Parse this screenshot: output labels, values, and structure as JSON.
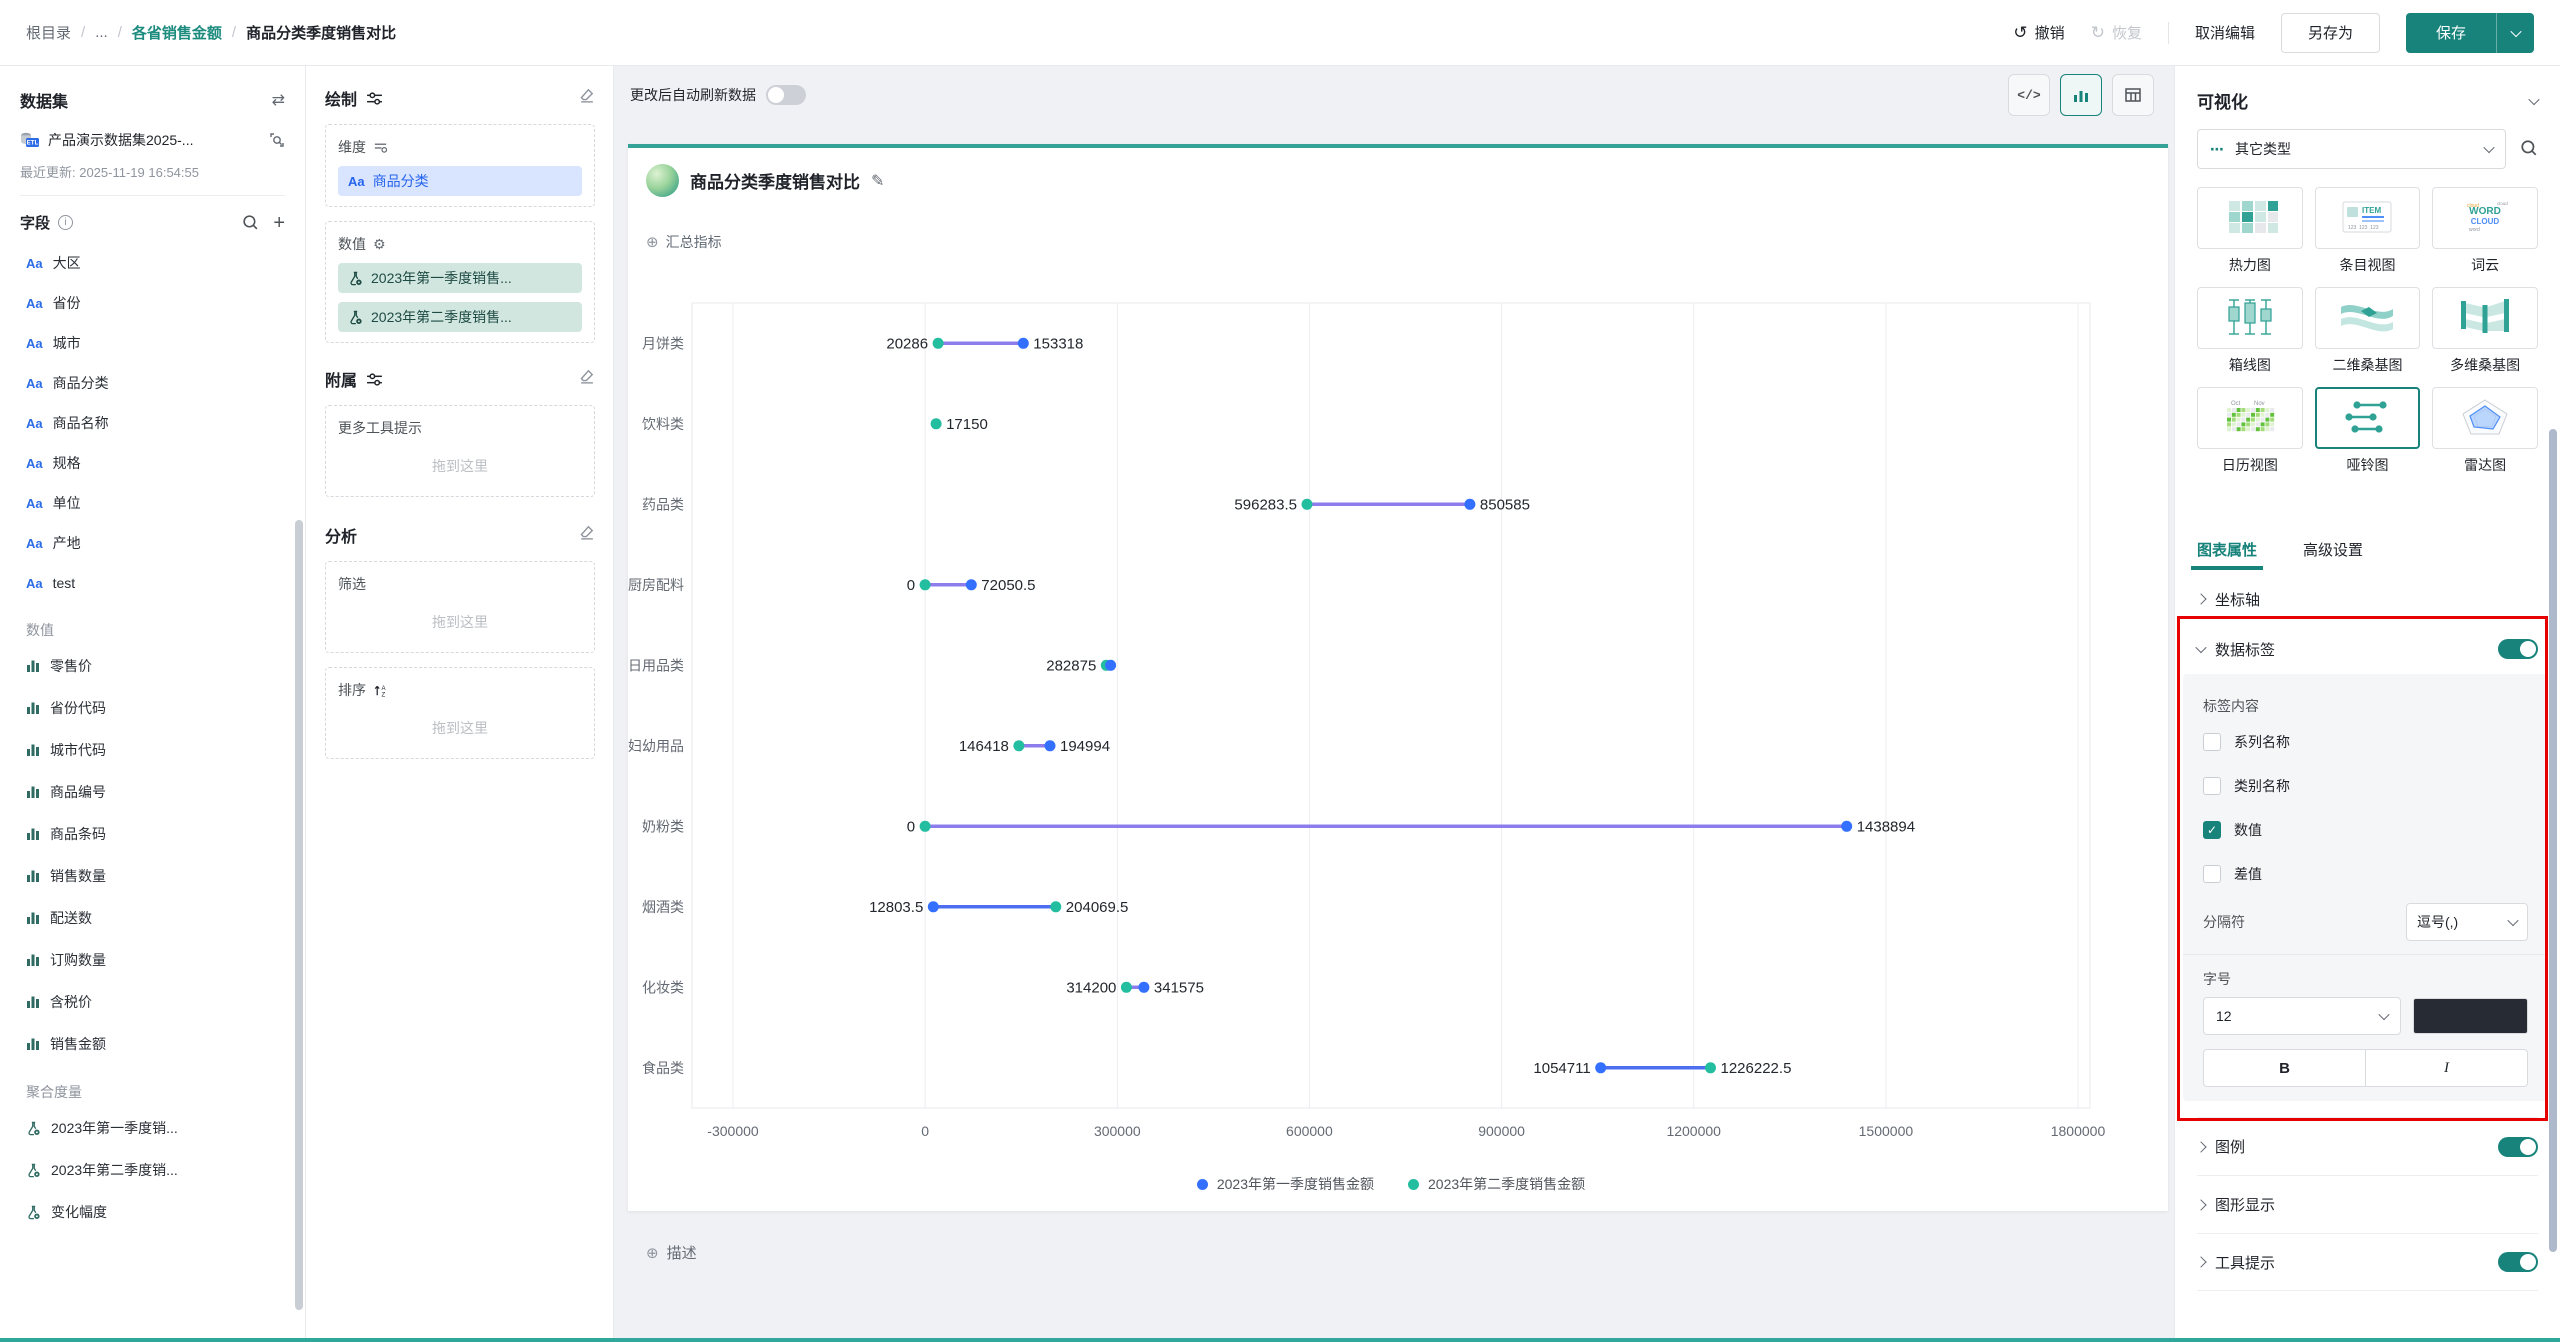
{
  "topbar": {
    "breadcrumb": [
      "根目录",
      "...",
      "各省销售金额",
      "商品分类季度销售对比"
    ],
    "undo": "撤销",
    "redo": "恢复",
    "cancel_edit": "取消编辑",
    "save_as": "另存为",
    "save": "保存"
  },
  "dataset_panel": {
    "title": "数据集",
    "name": "产品演示数据集2025-...",
    "updated": "最近更新: 2025-11-19 16:54:55",
    "fields_title": "字段",
    "groups": [
      {
        "label": "",
        "type": "text",
        "items": [
          "大区",
          "省份",
          "城市",
          "商品分类",
          "商品名称",
          "规格",
          "单位",
          "产地",
          "test"
        ]
      },
      {
        "label": "数值",
        "type": "measure",
        "items": [
          "零售价",
          "省份代码",
          "城市代码",
          "商品编号",
          "商品条码",
          "销售数量",
          "配送数",
          "订购数量",
          "含税价",
          "销售金额"
        ]
      },
      {
        "label": "聚合度量",
        "type": "calc",
        "items": [
          "2023年第一季度销...",
          "2023年第二季度销...",
          "变化幅度"
        ]
      }
    ]
  },
  "draw_panel": {
    "title": "绘制",
    "dimension_label": "维度",
    "dimension_pills": [
      {
        "icon": "aa",
        "label": "商品分类"
      }
    ],
    "measure_label": "数值",
    "measure_pills": [
      {
        "icon": "flask",
        "label": "2023年第一季度销售..."
      },
      {
        "icon": "flask",
        "label": "2023年第二季度销售..."
      }
    ],
    "attach_title": "附属",
    "attach_box": {
      "label": "更多工具提示",
      "hint": "拖到这里"
    },
    "analysis_title": "分析",
    "filter_box": {
      "label": "筛选",
      "hint": "拖到这里"
    },
    "sort_box": {
      "label": "排序",
      "hint": "拖到这里"
    }
  },
  "canvas": {
    "auto_refresh_label": "更改后自动刷新数据",
    "auto_refresh_on": false,
    "active_view": "chart",
    "summary_label": "汇总指标",
    "description_label": "描述"
  },
  "chart_data": {
    "type": "dumbbell",
    "title": "商品分类季度销售对比",
    "categories": [
      "月饼类",
      "饮料类",
      "药品类",
      "厨房配料",
      "日用品类",
      "妇幼用品",
      "奶粉类",
      "烟酒类",
      "化妆类",
      "食品类"
    ],
    "series": [
      {
        "name": "2023年第一季度销售金额",
        "color": "#3370FF"
      },
      {
        "name": "2023年第二季度销售金额",
        "color": "#23BEA0"
      }
    ],
    "rows": [
      {
        "category": "月饼类",
        "q1": 153318,
        "q2": 20286,
        "labels": [
          "20286",
          "153318"
        ],
        "line": "purple"
      },
      {
        "category": "饮料类",
        "q1": null,
        "q2": 17150,
        "labels": [
          "17150"
        ],
        "line": null
      },
      {
        "category": "药品类",
        "q1": 850585,
        "q2": 596283.5,
        "labels": [
          "596283.5",
          "850585"
        ],
        "line": "purple"
      },
      {
        "category": "厨房配料",
        "q1": 72050.5,
        "q2": 0,
        "labels": [
          "0",
          "72050.5"
        ],
        "line": "purple"
      },
      {
        "category": "日用品类",
        "q1": 289600,
        "q2": 282875,
        "labels": [
          "282875"
        ],
        "line": "purple"
      },
      {
        "category": "妇幼用品",
        "q1": 194994,
        "q2": 146418,
        "labels": [
          "146418",
          "194994"
        ],
        "line": "purple"
      },
      {
        "category": "奶粉类",
        "q1": 1438894,
        "q2": 0,
        "labels": [
          "0",
          "1438894"
        ],
        "line": "purple"
      },
      {
        "category": "烟酒类",
        "q1": 12803.5,
        "q2": 204069.5,
        "labels": [
          "12803.5",
          "204069.5"
        ],
        "line": "blue"
      },
      {
        "category": "化妆类",
        "q1": 341575,
        "q2": 314200,
        "labels": [
          "314200",
          "341575"
        ],
        "line": "purple"
      },
      {
        "category": "食品类",
        "q1": 1054711,
        "q2": 1226222.5,
        "labels": [
          "1054711",
          "1226222.5"
        ],
        "line": "blue"
      }
    ],
    "x_ticks": [
      -300000,
      0,
      300000,
      600000,
      900000,
      1200000,
      1500000,
      1800000
    ],
    "x_range": [
      -300000,
      1800000
    ],
    "grid": true,
    "legend_position": "bottom",
    "label_font_size": "12"
  },
  "viz_panel": {
    "title": "可视化",
    "type_select_value": "其它类型",
    "chart_types": [
      {
        "label": "热力图",
        "icon": "heatmap",
        "selected": false
      },
      {
        "label": "条目视图",
        "icon": "itemview",
        "selected": false
      },
      {
        "label": "词云",
        "icon": "wordcloud",
        "selected": false
      },
      {
        "label": "箱线图",
        "icon": "boxplot",
        "selected": false
      },
      {
        "label": "二维桑基图",
        "icon": "sankey2",
        "selected": false
      },
      {
        "label": "多维桑基图",
        "icon": "sankeyn",
        "selected": false
      },
      {
        "label": "日历视图",
        "icon": "calendar",
        "selected": false
      },
      {
        "label": "哑铃图",
        "icon": "dumbbell",
        "selected": true
      },
      {
        "label": "雷达图",
        "icon": "radar",
        "selected": false
      }
    ],
    "tabs": [
      {
        "label": "图表属性",
        "active": true
      },
      {
        "label": "高级设置",
        "active": false
      }
    ],
    "axis_section_label": "坐标轴",
    "data_label": {
      "title": "数据标签",
      "enabled": true,
      "content_label": "标签内容",
      "checkboxes": [
        {
          "label": "系列名称",
          "checked": false
        },
        {
          "label": "类别名称",
          "checked": false
        },
        {
          "label": "数值",
          "checked": true
        },
        {
          "label": "差值",
          "checked": false
        }
      ],
      "separator_label": "分隔符",
      "separator_value": "逗号(,)",
      "font_label": "字号",
      "font_size": "12",
      "font_color": "#272B33",
      "bold_label": "B",
      "italic_label": "I"
    },
    "sections": [
      {
        "label": "图例",
        "toggle": true
      },
      {
        "label": "图形显示",
        "toggle": null
      },
      {
        "label": "工具提示",
        "toggle": true
      }
    ]
  },
  "colors": {
    "brand": "#17837A",
    "card_accent": "#35A297",
    "chart_blue": "#3370FF",
    "chart_teal": "#23BEA0",
    "line_purple": "#8C7CEC",
    "line_blue": "#4E6EF2",
    "annotation_red": "#E60000"
  }
}
